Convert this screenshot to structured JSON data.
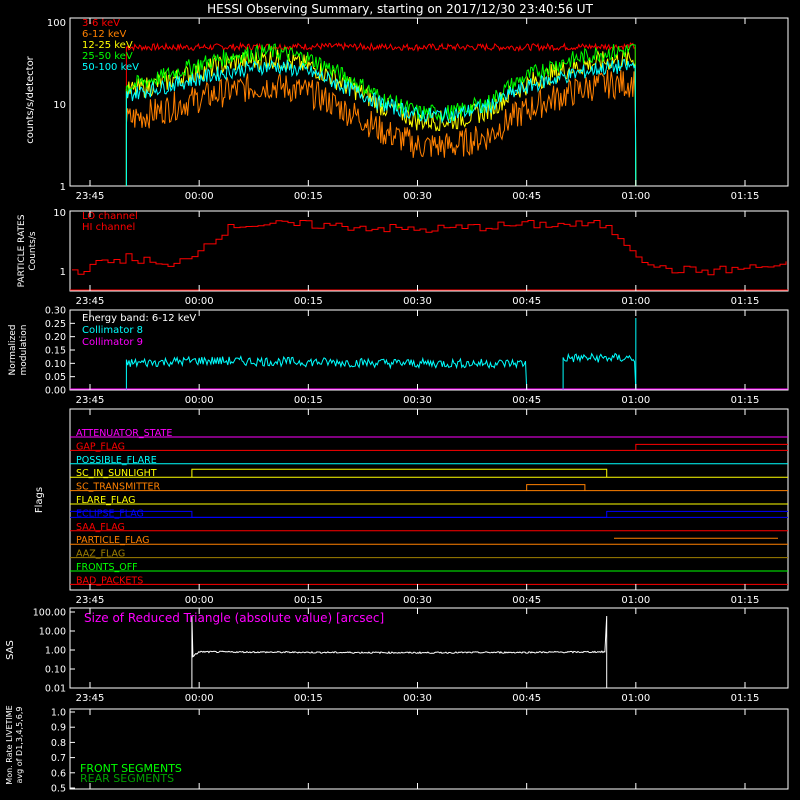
{
  "title": "HESSI Observing Summary, starting on 2017/12/30 23:40:56 UT",
  "time_ticks": [
    "23:45",
    "00:00",
    "00:15",
    "00:30",
    "00:45",
    "01:00",
    "01:15"
  ],
  "colors": {
    "frame": "#ffffff",
    "red": "#ff0000",
    "orange": "#ff8000",
    "yellow": "#ffff00",
    "green": "#00ff00",
    "cyan": "#00ffff",
    "magenta": "#ff00ff",
    "blue": "#0000ff",
    "olive": "#a08000",
    "dkgreen": "#00c000"
  },
  "chart_data": [
    {
      "type": "line",
      "panel": "count-rates",
      "ylabel": "counts/s/detector",
      "scale": "log",
      "ylim": [
        1,
        100
      ],
      "y_ticks": [
        "1",
        "10",
        "100"
      ],
      "legend": [
        "3-6 keV",
        "6-12 keV",
        "12-25 keV",
        "25-50 keV",
        "50-100 keV"
      ],
      "series": [
        {
          "name": "3-6 keV",
          "color": "red",
          "x": [
            "23:50",
            "00:00",
            "00:15",
            "00:30",
            "00:45",
            "01:00"
          ],
          "values": [
            45,
            45,
            46,
            45,
            45,
            46
          ]
        },
        {
          "name": "6-12 keV",
          "color": "orange",
          "x": [
            "23:50",
            "23:55",
            "00:00",
            "00:05",
            "00:10",
            "00:15",
            "00:20",
            "00:25",
            "00:30",
            "00:35",
            "00:40",
            "00:45",
            "00:50",
            "00:55",
            "01:00"
          ],
          "values": [
            6,
            8,
            11,
            14,
            16,
            13,
            8,
            4.5,
            3,
            3,
            4,
            8,
            12,
            16,
            17
          ]
        },
        {
          "name": "12-25 keV",
          "color": "yellow",
          "x": [
            "23:50",
            "23:55",
            "00:00",
            "00:05",
            "00:10",
            "00:15",
            "00:20",
            "00:25",
            "00:30",
            "00:35",
            "00:40",
            "00:45",
            "00:50",
            "00:55",
            "01:00"
          ],
          "values": [
            13,
            17,
            23,
            30,
            33,
            27,
            16,
            9,
            6,
            6,
            8,
            16,
            24,
            30,
            33
          ]
        },
        {
          "name": "25-50 keV",
          "color": "green",
          "x": [
            "23:50",
            "23:55",
            "00:00",
            "00:05",
            "00:10",
            "00:15",
            "00:20",
            "00:25",
            "00:30",
            "00:35",
            "00:40",
            "00:45",
            "00:50",
            "00:55",
            "01:00"
          ],
          "values": [
            15,
            20,
            28,
            36,
            40,
            33,
            20,
            11,
            7.5,
            7.5,
            10,
            20,
            30,
            38,
            42
          ]
        },
        {
          "name": "50-100 keV",
          "color": "cyan",
          "x": [
            "23:50",
            "23:55",
            "00:00",
            "00:05",
            "00:10",
            "00:15",
            "00:20",
            "00:25",
            "00:30",
            "00:35",
            "00:40",
            "00:45",
            "00:50",
            "00:55",
            "01:00"
          ],
          "values": [
            12,
            15,
            19,
            24,
            27,
            23,
            15,
            9.5,
            7,
            7,
            9,
            15,
            20,
            25,
            27
          ]
        }
      ]
    },
    {
      "type": "line",
      "panel": "particle-rates",
      "ylabel": "PARTICLE RATES Counts/s",
      "scale": "log",
      "ylim": [
        1,
        10
      ],
      "y_ticks": [
        "1",
        "10"
      ],
      "legend": [
        "LO channel",
        "HI channel"
      ],
      "series": [
        {
          "name": "HI channel",
          "color": "red",
          "x": [
            "23:43",
            "23:47",
            "23:50",
            "23:53",
            "23:56",
            "00:00",
            "00:05",
            "00:15",
            "00:30",
            "00:45",
            "00:55",
            "00:58",
            "01:00",
            "01:03",
            "01:10",
            "01:20"
          ],
          "values": [
            1.5,
            2,
            2.3,
            2,
            1.6,
            3,
            6.5,
            6.5,
            5.5,
            6.5,
            6.5,
            4,
            2.5,
            1.6,
            1.5,
            1.8
          ]
        }
      ]
    },
    {
      "type": "line",
      "panel": "modulation",
      "ylabel": "Normalized modulation",
      "ylim": [
        0,
        0.3
      ],
      "y_ticks": [
        "0.00",
        "0.05",
        "0.10",
        "0.15",
        "0.20",
        "0.25",
        "0.30"
      ],
      "legend": [
        "Energy band: 6-12 keV",
        "Collimator 8",
        "Collimator 9"
      ],
      "series": [
        {
          "name": "Collimator 8",
          "color": "cyan",
          "x": [
            "23:50",
            "00:00",
            "00:15",
            "00:30",
            "00:45",
            "00:50",
            "00:55",
            "01:00"
          ],
          "values": [
            0.1,
            0.11,
            0.105,
            0.1,
            0.1,
            0.12,
            0.12,
            0.12
          ]
        },
        {
          "name": "Collimator 9",
          "color": "magenta",
          "x": [
            "23:42",
            "01:20"
          ],
          "values": [
            0,
            0
          ]
        }
      ]
    },
    {
      "type": "line",
      "panel": "flags",
      "ylabel": "Flags",
      "flags": [
        {
          "name": "ATTENUATOR_STATE",
          "color": "magenta"
        },
        {
          "name": "GAP_FLAG",
          "color": "red"
        },
        {
          "name": "POSSIBLE_FLARE",
          "color": "cyan"
        },
        {
          "name": "SC_IN_SUNLIGHT",
          "color": "yellow"
        },
        {
          "name": "SC_TRANSMITTER",
          "color": "orange"
        },
        {
          "name": "FLARE_FLAG",
          "color": "yellow"
        },
        {
          "name": "ECLIPSE_FLAG",
          "color": "blue"
        },
        {
          "name": "SAA_FLAG",
          "color": "red"
        },
        {
          "name": "PARTICLE_FLAG",
          "color": "orange"
        },
        {
          "name": "AAZ_FLAG",
          "color": "olive"
        },
        {
          "name": "FRONTS_OFF",
          "color": "green"
        },
        {
          "name": "BAD_PACKETS",
          "color": "red"
        }
      ]
    },
    {
      "type": "line",
      "panel": "sas",
      "ylabel": "SAS",
      "scale": "log",
      "ylim": [
        0.01,
        100
      ],
      "y_ticks": [
        "100.00",
        "10.00",
        "1.00",
        "0.10",
        "0.01"
      ],
      "annotation": "Size of Reduced Triangle (absolute value) [arcsec]",
      "series": [
        {
          "name": "reduced-triangle",
          "color": "frame",
          "x": [
            "23:59",
            "00:00",
            "00:15",
            "00:30",
            "00:45",
            "00:56"
          ],
          "values": [
            0.35,
            0.8,
            0.75,
            0.72,
            0.75,
            0.8
          ]
        }
      ]
    },
    {
      "type": "line",
      "panel": "livetime",
      "ylabel": "Mon. Rate LIVETIME avg of D1,3,4,5,6,9",
      "ylim": [
        0.5,
        1.0
      ],
      "y_ticks": [
        "0.5",
        "0.6",
        "0.7",
        "0.8",
        "0.9",
        "1.0"
      ],
      "legend": [
        "FRONT SEGMENTS",
        "REAR SEGMENTS"
      ],
      "series": []
    }
  ]
}
